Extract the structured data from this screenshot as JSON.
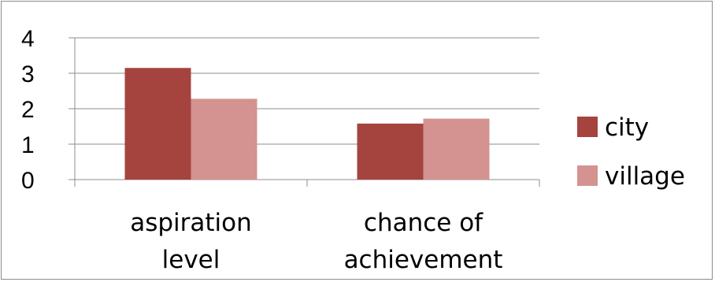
{
  "chart_data": {
    "type": "bar",
    "categories": [
      [
        "aspiration",
        "level"
      ],
      [
        "chance of",
        "achievement"
      ]
    ],
    "series": [
      {
        "name": "city",
        "color": "#a5443f",
        "values": [
          3.15,
          1.58
        ]
      },
      {
        "name": "village",
        "color": "#d49291",
        "values": [
          2.28,
          1.72
        ]
      }
    ],
    "yticks": [
      "0",
      "1",
      "2",
      "3",
      "4"
    ],
    "ylim": [
      0,
      4
    ],
    "grid": true,
    "legend_position": "right",
    "title": "",
    "xlabel": "",
    "ylabel": ""
  }
}
